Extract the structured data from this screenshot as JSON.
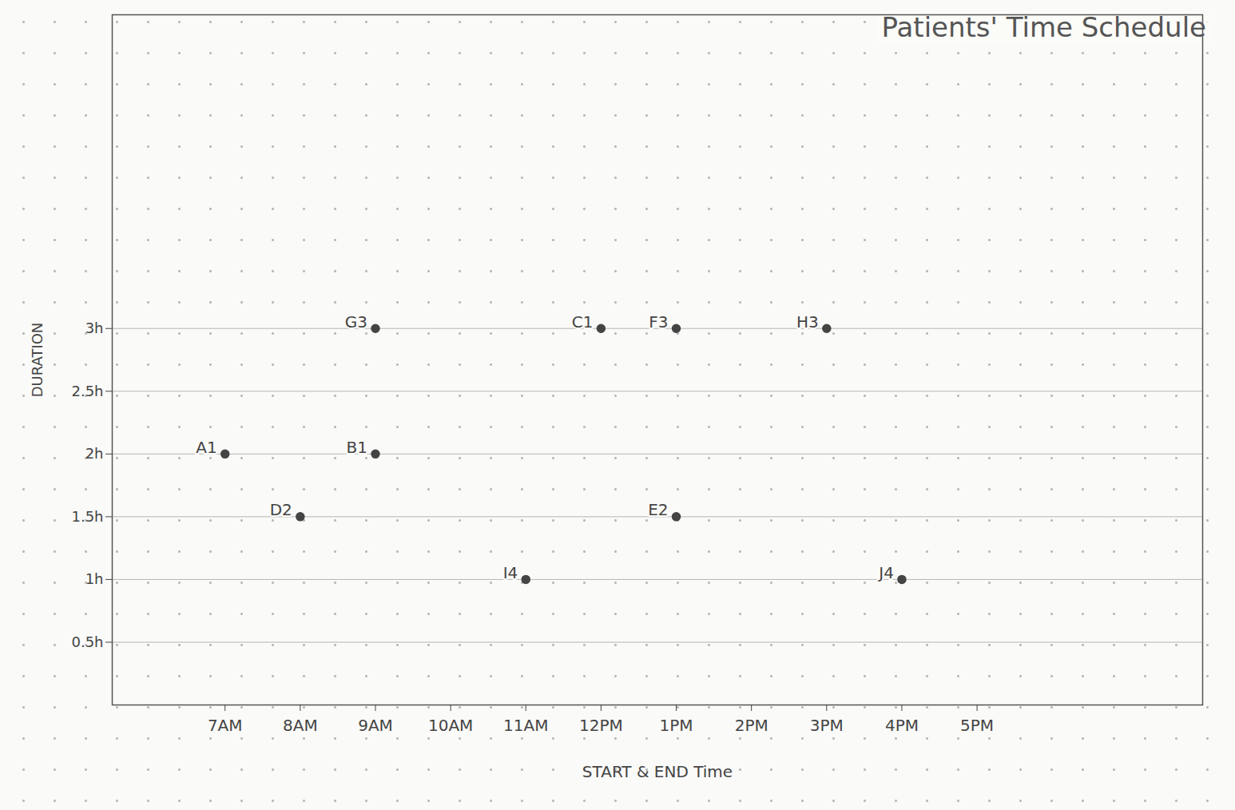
{
  "chart_data": {
    "type": "scatter",
    "title": "Patients' Time Schedule",
    "x_label": "START & END Time",
    "y_label": "DURATION",
    "labels": [
      "A1",
      "B1",
      "C1",
      "D2",
      "E2",
      "F3",
      "G3",
      "H3",
      "I4",
      "J4"
    ],
    "x": [
      7,
      9,
      12,
      8,
      13,
      13,
      9,
      15,
      11,
      16
    ],
    "values": [
      2,
      2,
      3,
      1.5,
      1.5,
      3,
      3,
      3,
      1,
      1
    ],
    "color": "#444444",
    "marker": "circle",
    "xlim": [
      5.5,
      20
    ],
    "xticks": [
      {
        "value": 7,
        "label": "7AM"
      },
      {
        "value": 8,
        "label": "8AM"
      },
      {
        "value": 9,
        "label": "9AM"
      },
      {
        "value": 10,
        "label": "10AM"
      },
      {
        "value": 11,
        "label": "11AM"
      },
      {
        "value": 12,
        "label": "12PM"
      },
      {
        "value": 13,
        "label": "1PM"
      },
      {
        "value": 14,
        "label": "2PM"
      },
      {
        "value": 15,
        "label": "3PM"
      },
      {
        "value": 16,
        "label": "4PM"
      },
      {
        "value": 17,
        "label": "5PM"
      }
    ],
    "ylim": [
      0,
      5.5
    ],
    "yticks": [
      {
        "value": 0.5,
        "label": "0.5h"
      },
      {
        "value": 1,
        "label": "1h"
      },
      {
        "value": 1.5,
        "label": "1.5h"
      },
      {
        "value": 2,
        "label": "2h"
      },
      {
        "value": 2.5,
        "label": "2.5h"
      },
      {
        "value": 3,
        "label": "3h"
      }
    ],
    "grid": "y"
  }
}
